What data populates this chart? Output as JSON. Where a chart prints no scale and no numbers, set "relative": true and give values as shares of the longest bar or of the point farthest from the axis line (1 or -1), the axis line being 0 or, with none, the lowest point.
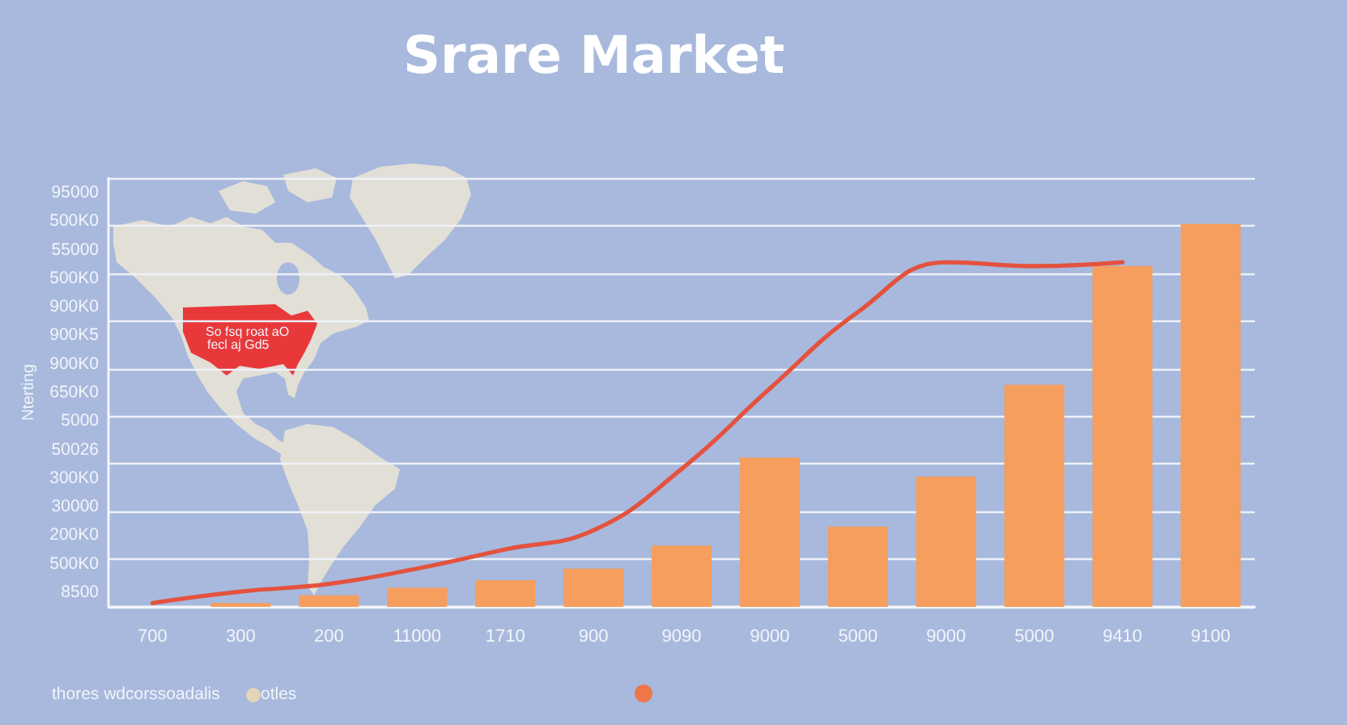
{
  "chart_data": {
    "type": "bar",
    "title": "Srare Market",
    "ylabel": "Nterting",
    "categories": [
      "700",
      "300",
      "200",
      "11000",
      "1710",
      "900",
      "9090",
      "9000",
      "5000",
      "9000",
      "5000",
      "9410",
      "9100"
    ],
    "relative": true,
    "series": [
      {
        "color": "#f59e5e",
        "values": [
          null,
          0.01,
          0.03,
          0.05,
          0.07,
          0.1,
          0.16,
          0.39,
          0.21,
          0.34,
          0.58,
          0.89,
          1
        ]
      },
      {
        "type": "line",
        "color": "#e4523e",
        "values": [
          0.01,
          0.04,
          0.06,
          0.1,
          0.15,
          0.2,
          0.36,
          0.57,
          0.77,
          0.9,
          0.89,
          0.9,
          null
        ]
      }
    ],
    "grid": "y",
    "marker": "none",
    "line_style": "solid",
    "annotations": [
      "95000",
      "500K0",
      "55000",
      "500K0",
      "900K0",
      "900K5",
      "900K0",
      "650K0",
      "5000",
      "50026",
      "300K0",
      "30000",
      "200K0",
      "500K0",
      "8500",
      "So fsq roat aO",
      "fecl aj Gd5",
      "thores wdcorssoadalis",
      "otles"
    ]
  }
}
